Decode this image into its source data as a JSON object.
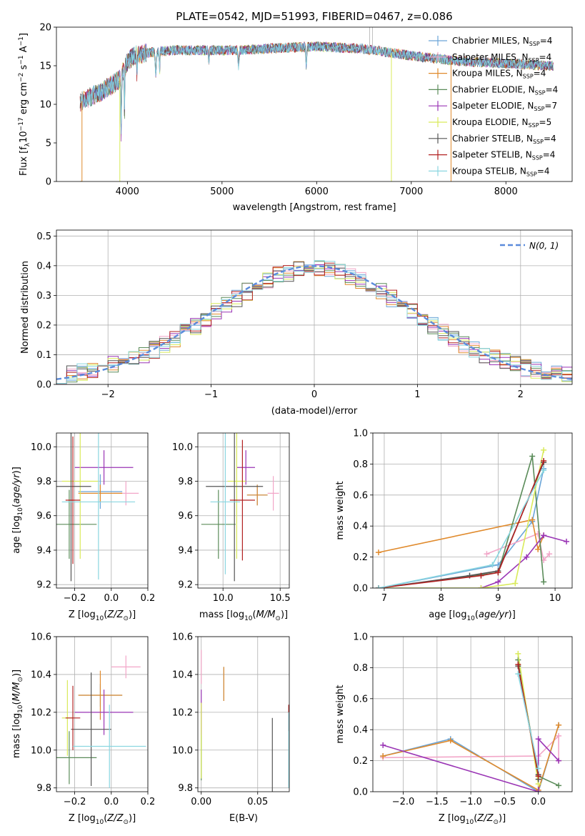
{
  "title": "PLATE=0542, MJD=51993, FIBERID=0467, z=0.086",
  "colors": {
    "Chabrier MILES": "#6aa5d8",
    "Salpeter MILES": "#f2a6c8",
    "Kroupa MILES": "#e08a2c",
    "Chabrier ELODIE": "#5b8c5a",
    "Salpeter ELODIE": "#9a35b5",
    "Kroupa ELODIE": "#d9ea5a",
    "Chabrier STELIB": "#555555",
    "Salpeter STELIB": "#b22222",
    "Kroupa STELIB": "#8ad6e0",
    "normal": "#5b8bdb"
  },
  "chart_data": [
    {
      "id": "spectrum",
      "type": "line",
      "xlabel": "wavelength [Angstrom, rest frame]",
      "ylabel": "Flux [f_λ10^-17 erg cm^-2 s^-1 A^-1]",
      "xlim": [
        3250,
        8700
      ],
      "ylim": [
        0,
        20
      ],
      "xticks": [
        4000,
        5000,
        6000,
        7000,
        8000
      ],
      "yticks": [
        0,
        5,
        10,
        15,
        20
      ],
      "legend_loc": "right",
      "legend": [
        {
          "model": "Chabrier MILES",
          "nssp": "4"
        },
        {
          "model": "Salpeter MILES",
          "nssp": "4"
        },
        {
          "model": "Kroupa MILES",
          "nssp": "4"
        },
        {
          "model": "Chabrier ELODIE",
          "nssp": "4"
        },
        {
          "model": "Salpeter ELODIE",
          "nssp": "7"
        },
        {
          "model": "Kroupa ELODIE",
          "nssp": "5"
        },
        {
          "model": "Chabrier STELIB",
          "nssp": "4"
        },
        {
          "model": "Salpeter STELIB",
          "nssp": "4"
        },
        {
          "model": "Kroupa STELIB",
          "nssp": "4"
        }
      ],
      "continuum": {
        "x": [
          3500,
          3700,
          3900,
          4000,
          4100,
          4300,
          4500,
          4800,
          5200,
          5600,
          6000,
          6500,
          7000,
          7500,
          8000,
          8500
        ],
        "y": [
          10.3,
          11.5,
          13.0,
          15.5,
          16.5,
          16.8,
          17.0,
          17.0,
          17.0,
          17.3,
          17.5,
          17.2,
          16.3,
          15.6,
          15.3,
          15.0
        ]
      },
      "cutoffs": {
        "x": [
          3520,
          3920,
          6790,
          7420
        ],
        "y": [
          0,
          0,
          0,
          0
        ]
      }
    },
    {
      "id": "residuals",
      "type": "histogram",
      "xlabel": "(data-model)/error",
      "ylabel": "Normed distribution",
      "xlim": [
        -2.5,
        2.5
      ],
      "ylim": [
        0,
        0.52
      ],
      "xticks": [
        -2,
        -1,
        0,
        1,
        2
      ],
      "yticks": [
        0,
        0.1,
        0.2,
        0.3,
        0.4,
        0.5
      ],
      "legend_label": "N(0, 1)",
      "legend_loc": "top-right",
      "bin_width": 0.1,
      "base_shape": {
        "mu": 0.0,
        "sigma": 0.95,
        "scale": 0.37,
        "floor": 0.02
      }
    },
    {
      "id": "age-vs-Z",
      "type": "errorbar",
      "xlabel": "Z [log10(Z/Z☉)]",
      "ylabel": "age  [log10(age/yr)]",
      "xlim": [
        -0.3,
        0.2
      ],
      "ylim": [
        9.18,
        10.08
      ],
      "xticks": [
        -0.2,
        0.0,
        0.2
      ],
      "yticks": [
        9.2,
        9.4,
        9.6,
        9.8,
        10.0
      ],
      "points": [
        {
          "model": "Chabrier MILES",
          "x": -0.06,
          "y": 9.74,
          "xerr": 0.12,
          "yerr": 0.1
        },
        {
          "model": "Salpeter MILES",
          "x": 0.08,
          "y": 9.73,
          "xerr": 0.07,
          "yerr": 0.07
        },
        {
          "model": "Kroupa MILES",
          "x": -0.06,
          "y": 9.73,
          "xerr": 0.12,
          "yerr": 0.05
        },
        {
          "model": "Chabrier ELODIE",
          "x": -0.23,
          "y": 9.55,
          "xerr": 0.15,
          "yerr": 0.2
        },
        {
          "model": "Salpeter ELODIE",
          "x": -0.04,
          "y": 9.88,
          "xerr": 0.16,
          "yerr": 0.1
        },
        {
          "model": "Kroupa ELODIE",
          "x": -0.17,
          "y": 9.8,
          "xerr": 0.1,
          "yerr": 0.45
        },
        {
          "model": "Chabrier STELIB",
          "x": -0.22,
          "y": 9.77,
          "xerr": 0.11,
          "yerr": 0.55
        },
        {
          "model": "Salpeter STELIB",
          "x": -0.21,
          "y": 9.69,
          "xerr": 0.04,
          "yerr": 0.37
        },
        {
          "model": "Kroupa STELIB",
          "x": -0.07,
          "y": 9.68,
          "xerr": 0.2,
          "yerr": 0.45
        }
      ]
    },
    {
      "id": "age-vs-mass",
      "type": "errorbar",
      "xlabel": "mass [log10(M/M☉)]",
      "ylabel": "",
      "xlim": [
        9.78,
        10.58
      ],
      "ylim": [
        9.18,
        10.08
      ],
      "xticks": [
        10.0,
        10.5
      ],
      "yticks": [
        9.2,
        9.4,
        9.6,
        9.8,
        10.0
      ],
      "points": [
        {
          "model": "Chabrier MILES",
          "x": 10.3,
          "y": 9.72,
          "xerr": 0.09,
          "yerr": 0.06
        },
        {
          "model": "Salpeter MILES",
          "x": 10.44,
          "y": 9.73,
          "xerr": 0.05,
          "yerr": 0.1
        },
        {
          "model": "Kroupa MILES",
          "x": 10.3,
          "y": 9.72,
          "xerr": 0.09,
          "yerr": 0.06
        },
        {
          "model": "Chabrier ELODIE",
          "x": 9.96,
          "y": 9.55,
          "xerr": 0.15,
          "yerr": 0.2
        },
        {
          "model": "Salpeter ELODIE",
          "x": 10.2,
          "y": 9.88,
          "xerr": 0.08,
          "yerr": 0.1
        },
        {
          "model": "Kroupa ELODIE",
          "x": 10.12,
          "y": 9.8,
          "xerr": 0.08,
          "yerr": 0.45
        },
        {
          "model": "Chabrier STELIB",
          "x": 10.1,
          "y": 9.77,
          "xerr": 0.25,
          "yerr": 0.55
        },
        {
          "model": "Salpeter STELIB",
          "x": 10.17,
          "y": 9.69,
          "xerr": 0.11,
          "yerr": 0.35
        },
        {
          "model": "Kroupa STELIB",
          "x": 10.02,
          "y": 9.68,
          "xerr": 0.13,
          "yerr": 0.42
        }
      ]
    },
    {
      "id": "weight-vs-age",
      "type": "line",
      "xlabel": "age  [log10(age/yr)]",
      "ylabel": "mass weight",
      "xlim": [
        6.8,
        10.3
      ],
      "ylim": [
        0,
        1.0
      ],
      "xticks": [
        7,
        8,
        9,
        10
      ],
      "yticks": [
        0,
        0.2,
        0.4,
        0.6,
        0.8,
        1.0
      ],
      "series": [
        {
          "model": "Chabrier MILES",
          "x": [
            6.9,
            9.0,
            9.6,
            9.8
          ],
          "y": [
            0.0,
            0.15,
            0.43,
            0.77
          ]
        },
        {
          "model": "Salpeter MILES",
          "x": [
            8.8,
            9.7,
            9.8,
            9.9
          ],
          "y": [
            0.22,
            0.35,
            0.18,
            0.22
          ]
        },
        {
          "model": "Kroupa MILES",
          "x": [
            6.9,
            9.6,
            9.7,
            9.8
          ],
          "y": [
            0.23,
            0.44,
            0.25,
            0.34
          ]
        },
        {
          "model": "Chabrier ELODIE",
          "x": [
            6.9,
            9.0,
            9.6,
            9.8
          ],
          "y": [
            0.0,
            0.1,
            0.85,
            0.04
          ]
        },
        {
          "model": "Salpeter ELODIE",
          "x": [
            8.7,
            9.0,
            9.5,
            9.8,
            10.2
          ],
          "y": [
            0.0,
            0.04,
            0.2,
            0.34,
            0.3
          ]
        },
        {
          "model": "Kroupa ELODIE",
          "x": [
            6.9,
            8.7,
            9.3,
            9.8
          ],
          "y": [
            0.0,
            0.0,
            0.03,
            0.89
          ]
        },
        {
          "model": "Chabrier STELIB",
          "x": [
            6.9,
            8.5,
            9.0,
            9.8
          ],
          "y": [
            0.0,
            0.08,
            0.11,
            0.81
          ]
        },
        {
          "model": "Salpeter STELIB",
          "x": [
            6.9,
            8.7,
            9.0,
            9.8
          ],
          "y": [
            0.0,
            0.08,
            0.1,
            0.82
          ]
        },
        {
          "model": "Kroupa STELIB",
          "x": [
            6.9,
            8.9,
            9.8
          ],
          "y": [
            0.0,
            0.15,
            0.76
          ]
        }
      ]
    },
    {
      "id": "mass-vs-Z",
      "type": "errorbar",
      "xlabel": "Z [log10(Z/Z☉)]",
      "ylabel": "mass [log10(M/M☉)]",
      "xlim": [
        -0.3,
        0.2
      ],
      "ylim": [
        9.78,
        10.6
      ],
      "xticks": [
        -0.2,
        0.0,
        0.2
      ],
      "yticks": [
        9.8,
        10.0,
        10.2,
        10.4,
        10.6
      ],
      "points": [
        {
          "model": "Chabrier MILES",
          "x": -0.06,
          "y": 10.29,
          "xerr": 0.12,
          "yerr": 0.06
        },
        {
          "model": "Salpeter MILES",
          "x": 0.08,
          "y": 10.44,
          "xerr": 0.08,
          "yerr": 0.06
        },
        {
          "model": "Kroupa MILES",
          "x": -0.06,
          "y": 10.29,
          "xerr": 0.12,
          "yerr": 0.13
        },
        {
          "model": "Chabrier ELODIE",
          "x": -0.23,
          "y": 9.96,
          "xerr": 0.15,
          "yerr": 0.14
        },
        {
          "model": "Salpeter ELODIE",
          "x": -0.04,
          "y": 10.2,
          "xerr": 0.16,
          "yerr": 0.12
        },
        {
          "model": "Kroupa ELODIE",
          "x": -0.24,
          "y": 10.17,
          "xerr": 0.03,
          "yerr": 0.2
        },
        {
          "model": "Chabrier STELIB",
          "x": -0.11,
          "y": 10.11,
          "xerr": 0.11,
          "yerr": 0.3
        },
        {
          "model": "Salpeter STELIB",
          "x": -0.21,
          "y": 10.17,
          "xerr": 0.04,
          "yerr": 0.17
        },
        {
          "model": "Kroupa STELIB",
          "x": -0.01,
          "y": 10.02,
          "xerr": 0.2,
          "yerr": 0.22
        }
      ]
    },
    {
      "id": "mass-vs-EBV",
      "type": "errorbar",
      "xlabel": "E(B-V)",
      "ylabel": "",
      "xlim": [
        -0.003,
        0.078
      ],
      "ylim": [
        9.78,
        10.6
      ],
      "xticks": [
        0.0,
        0.05
      ],
      "yticks": [
        9.8,
        10.0,
        10.2,
        10.4,
        10.6
      ],
      "points": [
        {
          "model": "Chabrier MILES",
          "x": 0.02,
          "y": 10.35,
          "yerr": 0.09
        },
        {
          "model": "Salpeter MILES",
          "x": 0.0,
          "y": 10.44,
          "yerr": 0.09
        },
        {
          "model": "Kroupa MILES",
          "x": 0.02,
          "y": 10.35,
          "yerr": 0.09
        },
        {
          "model": "Chabrier ELODIE",
          "x": 0.0,
          "y": 9.96,
          "yerr": 0.12
        },
        {
          "model": "Salpeter ELODIE",
          "x": 0.0,
          "y": 10.2,
          "yerr": 0.12
        },
        {
          "model": "Kroupa ELODIE",
          "x": 0.0,
          "y": 10.05,
          "yerr": 0.2
        },
        {
          "model": "Chabrier STELIB",
          "x": 0.063,
          "y": 9.95,
          "yerr": 0.22
        },
        {
          "model": "Salpeter STELIB",
          "x": 0.0775,
          "y": 10.17,
          "yerr": 0.07
        },
        {
          "model": "Kroupa STELIB",
          "x": 0.0775,
          "y": 10.0,
          "yerr": 0.2
        }
      ]
    },
    {
      "id": "weight-vs-Z",
      "type": "line",
      "xlabel": "Z [log10(Z/Z☉)]",
      "ylabel": "mass weight",
      "xlim": [
        -2.45,
        0.5
      ],
      "ylim": [
        0,
        1.0
      ],
      "xticks": [
        -2.0,
        -1.5,
        -1.0,
        -0.5,
        0.0
      ],
      "yticks": [
        0,
        0.2,
        0.4,
        0.6,
        0.8,
        1.0
      ],
      "series": [
        {
          "model": "Chabrier MILES",
          "x": [
            -2.3,
            -1.3,
            0.0,
            0.3
          ],
          "y": [
            0.23,
            0.34,
            0.0,
            0.43
          ]
        },
        {
          "model": "Salpeter MILES",
          "x": [
            -2.3,
            0.0,
            0.3,
            0.3
          ],
          "y": [
            0.22,
            0.23,
            0.36,
            0.2
          ]
        },
        {
          "model": "Kroupa MILES",
          "x": [
            -2.3,
            -1.3,
            0.0,
            0.3
          ],
          "y": [
            0.23,
            0.33,
            0.01,
            0.43
          ]
        },
        {
          "model": "Chabrier ELODIE",
          "x": [
            -0.3,
            0.0,
            0.3
          ],
          "y": [
            0.85,
            0.1,
            0.04
          ]
        },
        {
          "model": "Salpeter ELODIE",
          "x": [
            -2.3,
            0.0,
            0.0,
            0.3
          ],
          "y": [
            0.3,
            0.0,
            0.34,
            0.2
          ]
        },
        {
          "model": "Kroupa ELODIE",
          "x": [
            -0.3,
            0.0
          ],
          "y": [
            0.89,
            0.05
          ]
        },
        {
          "model": "Chabrier STELIB",
          "x": [
            -0.3,
            0.0,
            0.0
          ],
          "y": [
            0.81,
            0.11,
            0.08
          ]
        },
        {
          "model": "Salpeter STELIB",
          "x": [
            -0.3,
            0.0
          ],
          "y": [
            0.82,
            0.1
          ]
        },
        {
          "model": "Kroupa STELIB",
          "x": [
            -0.3,
            0.0
          ],
          "y": [
            0.76,
            0.15
          ]
        }
      ]
    }
  ]
}
